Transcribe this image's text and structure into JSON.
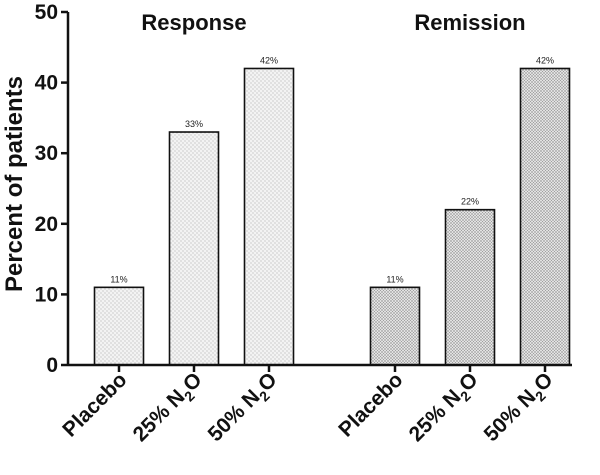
{
  "chart_data": {
    "type": "bar",
    "ylabel": "Percent of patients",
    "ylim": [
      0,
      50
    ],
    "yticks": [
      0,
      10,
      20,
      30,
      40,
      50
    ],
    "groups": [
      {
        "title": "Response",
        "pattern": "light-dots",
        "categories": [
          {
            "label": "Placebo",
            "sub": ""
          },
          {
            "label": "25% N",
            "sub": "2",
            "suffix": "O"
          },
          {
            "label": "50% N",
            "sub": "2",
            "suffix": "O"
          }
        ],
        "values": [
          11,
          33,
          42
        ],
        "data_labels": [
          "11%",
          "33%",
          "42%"
        ]
      },
      {
        "title": "Remission",
        "pattern": "dense-dots",
        "categories": [
          {
            "label": "Placebo",
            "sub": ""
          },
          {
            "label": "25% N",
            "sub": "2",
            "suffix": "O"
          },
          {
            "label": "50% N",
            "sub": "2",
            "suffix": "O"
          }
        ],
        "values": [
          11,
          22,
          42
        ],
        "data_labels": [
          "11%",
          "22%",
          "42%"
        ]
      }
    ]
  }
}
